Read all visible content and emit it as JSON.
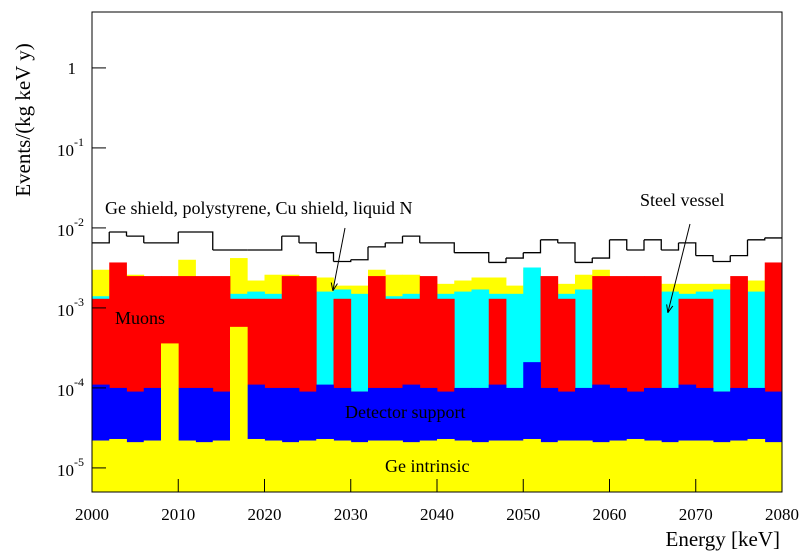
{
  "chart_data": {
    "type": "histogram",
    "xlabel": "Energy [keV]",
    "ylabel": "Events/(kg keV y)",
    "log_y": true,
    "overlay": true,
    "bins": [
      2000,
      2002,
      2004,
      2006,
      2008,
      2010,
      2012,
      2014,
      2016,
      2018,
      2020,
      2022,
      2024,
      2026,
      2028,
      2030,
      2032,
      2034,
      2036,
      2038,
      2040,
      2042,
      2044,
      2046,
      2048,
      2050,
      2052,
      2054,
      2056,
      2058,
      2060,
      2062,
      2064,
      2066,
      2068,
      2070,
      2072,
      2074,
      2076,
      2078,
      2080
    ],
    "xlim": [
      2000,
      2080
    ],
    "xticks": [
      2000,
      2010,
      2020,
      2030,
      2040,
      2050,
      2060,
      2070,
      2080
    ],
    "ylim": [
      5e-06,
      5
    ],
    "yticks": [
      {
        "value": 1e-05,
        "label": "10",
        "exponent": "-5"
      },
      {
        "value": 0.0001,
        "label": "10",
        "exponent": "-4"
      },
      {
        "value": 0.001,
        "label": "10",
        "exponent": "-3"
      },
      {
        "value": 0.01,
        "label": "10",
        "exponent": "-2"
      },
      {
        "value": 0.1,
        "label": "10",
        "exponent": "-1"
      },
      1
    ],
    "series": [
      {
        "name": "Ge shield, polystyrene, Cu shield, liquid N",
        "color": "#ffff00",
        "values": [
          0.003,
          0.003,
          0.0026,
          0.0024,
          0.0024,
          0.004,
          0.0024,
          0.0022,
          0.0042,
          0.0022,
          0.0026,
          0.0026,
          0.0021,
          0.0024,
          0.0019,
          0.0019,
          0.003,
          0.0026,
          0.0026,
          0.0022,
          0.002,
          0.0022,
          0.0024,
          0.0024,
          0.0019,
          0.003,
          0.0022,
          0.002,
          0.0026,
          0.003,
          0.0022,
          0.0019,
          0.0022,
          0.002,
          0.002,
          0.002,
          0.002,
          0.0019,
          0.0022,
          0.003
        ]
      },
      {
        "name": "Steel vessel",
        "color": "#00ffff",
        "values": [
          0.0014,
          0.0015,
          0.0016,
          0.0015,
          0.0014,
          0.0016,
          0.0015,
          0.0014,
          0.0015,
          0.0016,
          0.0015,
          0.0014,
          0.0015,
          0.0016,
          0.0017,
          0.0015,
          0.0016,
          0.0014,
          0.0015,
          0.0016,
          0.0015,
          0.0016,
          0.0017,
          0.0015,
          0.0015,
          0.0032,
          0.0016,
          0.0015,
          0.0017,
          0.0014,
          0.0015,
          0.0016,
          0.0015,
          0.0016,
          0.0015,
          0.0016,
          0.0017,
          0.0015,
          0.0016,
          0.0014
        ]
      },
      {
        "name": "Muons",
        "color": "#ff0000",
        "values": [
          0.0013,
          0.0037,
          0.0025,
          0.0025,
          0.0025,
          0.0025,
          0.0025,
          0.0025,
          0.0013,
          0.0013,
          0.0013,
          0.0025,
          0.0025,
          9e-05,
          0.0013,
          9e-05,
          0.0025,
          0.0013,
          0.0013,
          0.0025,
          0.0013,
          9e-05,
          9e-05,
          0.0013,
          9e-05,
          9e-05,
          0.0025,
          0.0013,
          9e-05,
          0.0025,
          0.0025,
          0.0025,
          0.0025,
          9e-05,
          0.0013,
          0.0013,
          9e-05,
          0.0025,
          9e-05,
          0.0037
        ]
      },
      {
        "name": "Detector support",
        "color": "#0000ff",
        "values": [
          0.00011,
          0.0001,
          9e-05,
          0.0001,
          0.00011,
          0.0001,
          0.0001,
          9e-05,
          0.0001,
          0.00011,
          0.0001,
          0.0001,
          9e-05,
          0.00011,
          0.0001,
          9e-05,
          0.0001,
          0.0001,
          0.00011,
          0.0001,
          9e-05,
          0.0001,
          0.0001,
          0.00011,
          0.0001,
          0.00021,
          0.0001,
          9e-05,
          0.0001,
          0.00011,
          0.0001,
          9e-05,
          0.0001,
          0.0001,
          0.00011,
          0.0001,
          9e-05,
          0.0001,
          0.0001,
          9e-05
        ]
      },
      {
        "name": "Ge intrinsic",
        "color": "#ffff00",
        "values": [
          2.2e-05,
          2.3e-05,
          2.1e-05,
          2.2e-05,
          0.00036,
          2.2e-05,
          2.1e-05,
          2.2e-05,
          0.00058,
          2.3e-05,
          2.2e-05,
          2.1e-05,
          2.2e-05,
          2.3e-05,
          2.2e-05,
          2.1e-05,
          2.2e-05,
          2.2e-05,
          2.1e-05,
          2.2e-05,
          2.3e-05,
          2.2e-05,
          2.1e-05,
          2.2e-05,
          2.2e-05,
          2.3e-05,
          2.1e-05,
          2.2e-05,
          2.2e-05,
          2.1e-05,
          2.2e-05,
          2.3e-05,
          2.2e-05,
          2.1e-05,
          2.2e-05,
          2.2e-05,
          2.1e-05,
          2.2e-05,
          2.3e-05,
          2.1e-05
        ]
      },
      {
        "color": "#000000",
        "fill": false,
        "values": [
          0.0065,
          0.0089,
          0.0079,
          0.0065,
          0.0065,
          0.0089,
          0.0089,
          0.0053,
          0.0053,
          0.0053,
          0.0053,
          0.0079,
          0.0065,
          0.0049,
          0.0038,
          0.004,
          0.0058,
          0.0065,
          0.0079,
          0.0065,
          0.0065,
          0.0049,
          0.0049,
          0.0037,
          0.0042,
          0.0049,
          0.0071,
          0.0065,
          0.0037,
          0.0042,
          0.0071,
          0.0053,
          0.0071,
          0.0053,
          0.0065,
          0.0045,
          0.0038,
          0.0045,
          0.0071,
          0.0075
        ]
      }
    ]
  }
}
